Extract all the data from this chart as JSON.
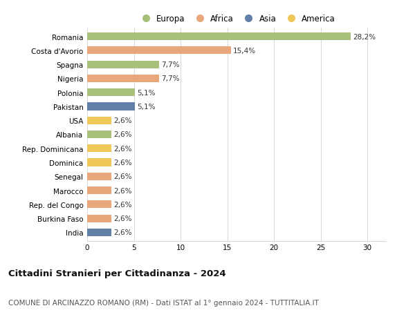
{
  "countries": [
    "Romania",
    "Costa d'Avorio",
    "Spagna",
    "Nigeria",
    "Polonia",
    "Pakistan",
    "USA",
    "Albania",
    "Rep. Dominicana",
    "Dominica",
    "Senegal",
    "Marocco",
    "Rep. del Congo",
    "Burkina Faso",
    "India"
  ],
  "values": [
    28.2,
    15.4,
    7.7,
    7.7,
    5.1,
    5.1,
    2.6,
    2.6,
    2.6,
    2.6,
    2.6,
    2.6,
    2.6,
    2.6,
    2.6
  ],
  "labels": [
    "28,2%",
    "15,4%",
    "7,7%",
    "7,7%",
    "5,1%",
    "5,1%",
    "2,6%",
    "2,6%",
    "2,6%",
    "2,6%",
    "2,6%",
    "2,6%",
    "2,6%",
    "2,6%",
    "2,6%"
  ],
  "continents": [
    "Europa",
    "Africa",
    "Europa",
    "Africa",
    "Europa",
    "Asia",
    "America",
    "Europa",
    "America",
    "America",
    "Africa",
    "Africa",
    "Africa",
    "Africa",
    "Asia"
  ],
  "colors": {
    "Europa": "#a8c07a",
    "Africa": "#e8a87c",
    "Asia": "#6080a8",
    "America": "#f0c85a"
  },
  "legend_order": [
    "Europa",
    "Africa",
    "Asia",
    "America"
  ],
  "title": "Cittadini Stranieri per Cittadinanza - 2024",
  "subtitle": "COMUNE DI ARCINAZZO ROMANO (RM) - Dati ISTAT al 1° gennaio 2024 - TUTTITALIA.IT",
  "xlim": [
    0,
    32
  ],
  "xticks": [
    0,
    5,
    10,
    15,
    20,
    25,
    30
  ],
  "background_color": "#ffffff",
  "grid_color": "#d8d8d8",
  "bar_height": 0.55,
  "label_fontsize": 7.5,
  "tick_fontsize": 7.5,
  "title_fontsize": 9.5,
  "subtitle_fontsize": 7.5
}
